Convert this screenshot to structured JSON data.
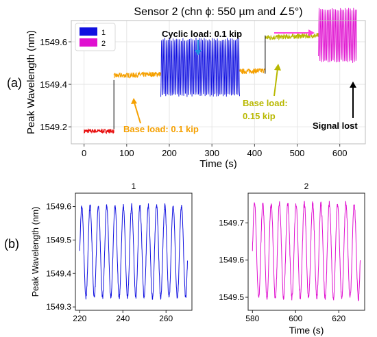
{
  "chart_data": [
    {
      "panel": "(a)",
      "type": "line",
      "title": "Sensor 2 (chn ϕ: 550 µm and ∠5°)",
      "xlabel": "Time (s)",
      "ylabel": "Peak Wavelength (nm)",
      "xlim": [
        -30,
        660
      ],
      "ylim": [
        1549.12,
        1549.7
      ],
      "xticks": [
        "0",
        "100",
        "200",
        "300",
        "400",
        "500",
        "600"
      ],
      "yticks": [
        "1549.2",
        "1549.4",
        "1549.6"
      ],
      "grid": true,
      "legend": {
        "position": "top-left",
        "entries": [
          "1",
          "2"
        ]
      },
      "series": [
        {
          "name": "1",
          "color": "#1010e0",
          "x_range": [
            180,
            365
          ],
          "base": 1549.48,
          "amplitude": 0.14
        },
        {
          "name": "2",
          "color": "#e010d0",
          "x_range": [
            550,
            640
          ],
          "base": 1549.63,
          "amplitude": 0.13
        }
      ],
      "segments": [
        {
          "color": "#e81010",
          "x_range": [
            0,
            70
          ],
          "level": 1549.18,
          "noise": 0.01
        },
        {
          "color": "#f5a000",
          "x_range": [
            70,
            180
          ],
          "level": 1549.44,
          "noise": 0.012
        },
        {
          "color": "#f5a000",
          "x_range": [
            365,
            425
          ],
          "level": 1549.46,
          "noise": 0.012
        },
        {
          "color": "#b8b800",
          "x_range": [
            425,
            550
          ],
          "level": 1549.62,
          "noise": 0.012
        }
      ],
      "annotations": [
        {
          "text": "Cyclic load:  0.1 kip",
          "color": "#000000"
        },
        {
          "text": "Base load:  0.1 kip",
          "color": "#f5a000"
        },
        {
          "text": "Base load:",
          "color": "#b8b800"
        },
        {
          "text": "0.15 kip",
          "color": "#b8b800"
        },
        {
          "text": "Signal lost",
          "color": "#000000"
        }
      ]
    },
    {
      "panel": "(b)",
      "type": "line",
      "title": "1",
      "xlabel": "",
      "ylabel": "Peak Wavelength (nm)",
      "xlim": [
        218,
        272
      ],
      "ylim": [
        1549.29,
        1549.64
      ],
      "xticks": [
        "220",
        "240",
        "260"
      ],
      "yticks": [
        "1549.3",
        "1549.4",
        "1549.5",
        "1549.6"
      ],
      "series": [
        {
          "name": "1",
          "color": "#1010e0",
          "x_range": [
            220,
            270
          ],
          "mean": 1549.465,
          "amplitude": 0.14,
          "period": 3.85
        }
      ]
    },
    {
      "panel": "(b)",
      "type": "line",
      "title": "2",
      "xlabel": "Time (s)",
      "ylabel": "",
      "xlim": [
        578,
        632
      ],
      "ylim": [
        1549.465,
        1549.78
      ],
      "xticks": [
        "580",
        "600",
        "620"
      ],
      "yticks": [
        "1549.5",
        "1549.6",
        "1549.7"
      ],
      "series": [
        {
          "name": "2",
          "color": "#e010d0",
          "x_range": [
            580,
            630
          ],
          "mean": 1549.625,
          "amplitude": 0.13,
          "period": 3.85
        }
      ]
    }
  ],
  "labels": {
    "panel_a": "(a)",
    "panel_b": "(b)"
  }
}
